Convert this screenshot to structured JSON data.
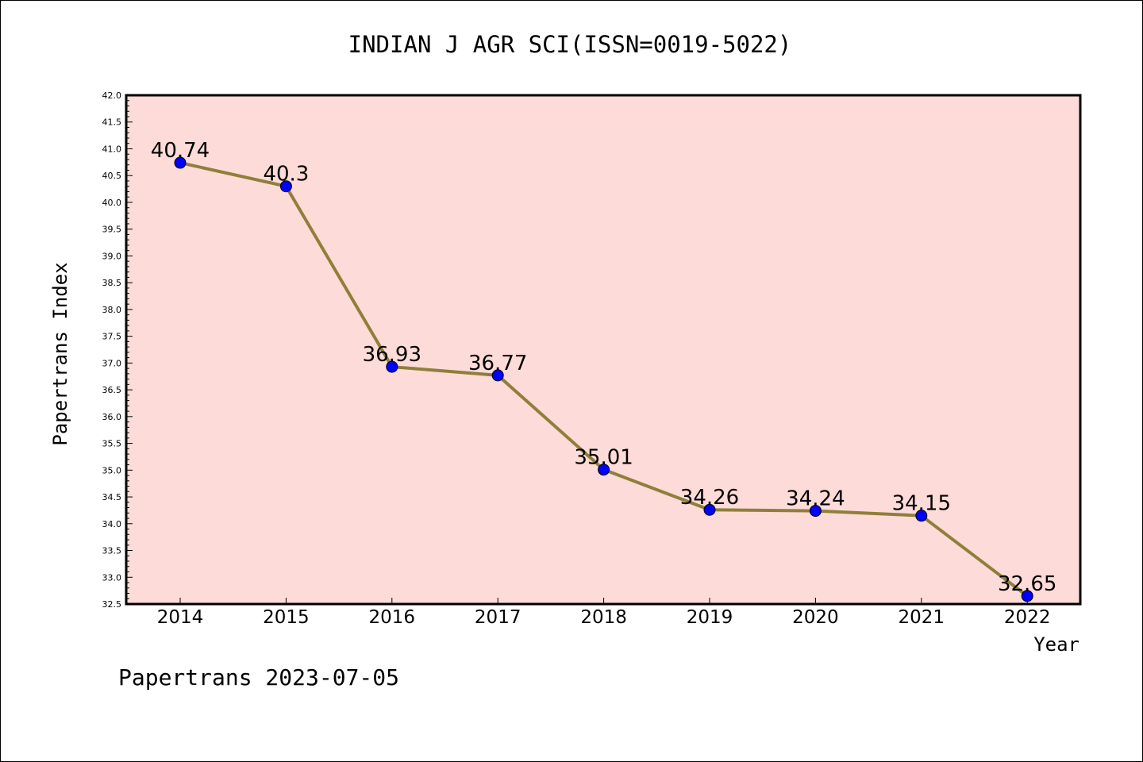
{
  "chart_data": {
    "type": "line",
    "title": "INDIAN J AGR SCI(ISSN=0019-5022)",
    "xlabel": "Year",
    "ylabel": "Papertrans Index",
    "footer": "Papertrans 2023-07-05",
    "categories": [
      "2014",
      "2015",
      "2016",
      "2017",
      "2018",
      "2019",
      "2020",
      "2021",
      "2022"
    ],
    "values": [
      40.74,
      40.3,
      36.93,
      36.77,
      35.01,
      34.26,
      34.24,
      34.15,
      32.65
    ],
    "data_labels": [
      "40.74",
      "40.3",
      "36.93",
      "36.77",
      "35.01",
      "34.26",
      "34.24",
      "34.15",
      "32.65"
    ],
    "yticks": [
      "32.5",
      "33.0",
      "33.5",
      "34.0",
      "34.5",
      "35.0",
      "35.5",
      "36.0",
      "36.5",
      "37.0",
      "37.5",
      "38.0",
      "38.5",
      "39.0",
      "39.5",
      "40.0",
      "40.5",
      "41.0",
      "41.5",
      "42.0"
    ],
    "ylim": [
      32.5,
      42.0
    ],
    "grid": false,
    "colors": {
      "plot_background": "#fddbd8",
      "line": "#8f7f3a",
      "marker": "#0000ff"
    }
  }
}
